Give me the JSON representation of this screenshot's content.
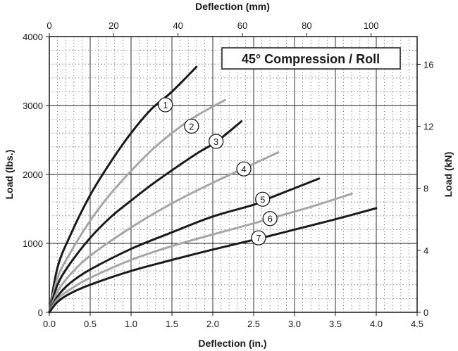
{
  "chart_data": {
    "type": "line",
    "title": "45° Compression / Roll",
    "xlabel": "Deflection (in.)",
    "ylabel": "Load (lbs.)",
    "x2label": "Deflection (mm)",
    "y2label": "Load (kN)",
    "xlim": [
      0,
      4.5
    ],
    "ylim": [
      0,
      4000
    ],
    "x2lim": [
      0,
      114.3
    ],
    "y2lim": [
      0,
      17.79
    ],
    "xticks": [
      "0.0",
      "0.5",
      "1.0",
      "1.5",
      "2.0",
      "2.5",
      "3.0",
      "3.5",
      "4.0",
      "4.5"
    ],
    "yticks": [
      "0",
      "1000",
      "2000",
      "3000",
      "4000"
    ],
    "x2ticks": [
      "0",
      "20",
      "40",
      "60",
      "80",
      "100"
    ],
    "y2ticks": [
      "0",
      "4",
      "8",
      "12",
      "16"
    ],
    "grid": true,
    "series": [
      {
        "name": "1",
        "color": "#1a1a1a",
        "x": [
          0,
          0.1,
          0.25,
          0.5,
          0.75,
          1.0,
          1.25,
          1.5,
          1.8
        ],
        "y": [
          0,
          650,
          1100,
          1700,
          2180,
          2600,
          2950,
          3200,
          3560
        ]
      },
      {
        "name": "2",
        "color": "#a6a6a6",
        "x": [
          0,
          0.1,
          0.25,
          0.5,
          0.75,
          1.0,
          1.25,
          1.5,
          1.8,
          2.15
        ],
        "y": [
          0,
          500,
          850,
          1330,
          1720,
          2050,
          2350,
          2600,
          2850,
          3080
        ]
      },
      {
        "name": "3",
        "color": "#1a1a1a",
        "x": [
          0,
          0.1,
          0.25,
          0.5,
          0.75,
          1.0,
          1.25,
          1.5,
          1.8,
          2.05,
          2.35
        ],
        "y": [
          0,
          400,
          700,
          1080,
          1380,
          1620,
          1850,
          2060,
          2300,
          2480,
          2770
        ]
      },
      {
        "name": "4",
        "color": "#a6a6a6",
        "x": [
          0,
          0.1,
          0.25,
          0.5,
          1.0,
          1.5,
          2.0,
          2.4,
          2.8
        ],
        "y": [
          0,
          300,
          540,
          820,
          1230,
          1580,
          1880,
          2100,
          2320
        ]
      },
      {
        "name": "5",
        "color": "#1a1a1a",
        "x": [
          0,
          0.1,
          0.25,
          0.5,
          1.0,
          1.5,
          2.0,
          2.5,
          2.7,
          3.3
        ],
        "y": [
          0,
          230,
          420,
          620,
          920,
          1160,
          1390,
          1560,
          1660,
          1940
        ]
      },
      {
        "name": "6",
        "color": "#a6a6a6",
        "x": [
          0,
          0.1,
          0.25,
          0.5,
          1.0,
          1.5,
          2.0,
          2.5,
          2.7,
          3.2,
          3.7
        ],
        "y": [
          0,
          190,
          330,
          500,
          760,
          960,
          1130,
          1290,
          1360,
          1530,
          1720
        ]
      },
      {
        "name": "7",
        "color": "#1a1a1a",
        "x": [
          0,
          0.1,
          0.25,
          0.5,
          1.0,
          1.5,
          2.0,
          2.6,
          3.0,
          3.5,
          4.0
        ],
        "y": [
          0,
          150,
          270,
          400,
          600,
          760,
          910,
          1080,
          1200,
          1350,
          1510
        ]
      }
    ],
    "labels": [
      {
        "text": "1",
        "x": 1.42,
        "y": 3010
      },
      {
        "text": "2",
        "x": 1.74,
        "y": 2700
      },
      {
        "text": "3",
        "x": 2.04,
        "y": 2480
      },
      {
        "text": "4",
        "x": 2.38,
        "y": 2080
      },
      {
        "text": "5",
        "x": 2.61,
        "y": 1640
      },
      {
        "text": "6",
        "x": 2.7,
        "y": 1360
      },
      {
        "text": "7",
        "x": 2.56,
        "y": 1080
      }
    ]
  }
}
